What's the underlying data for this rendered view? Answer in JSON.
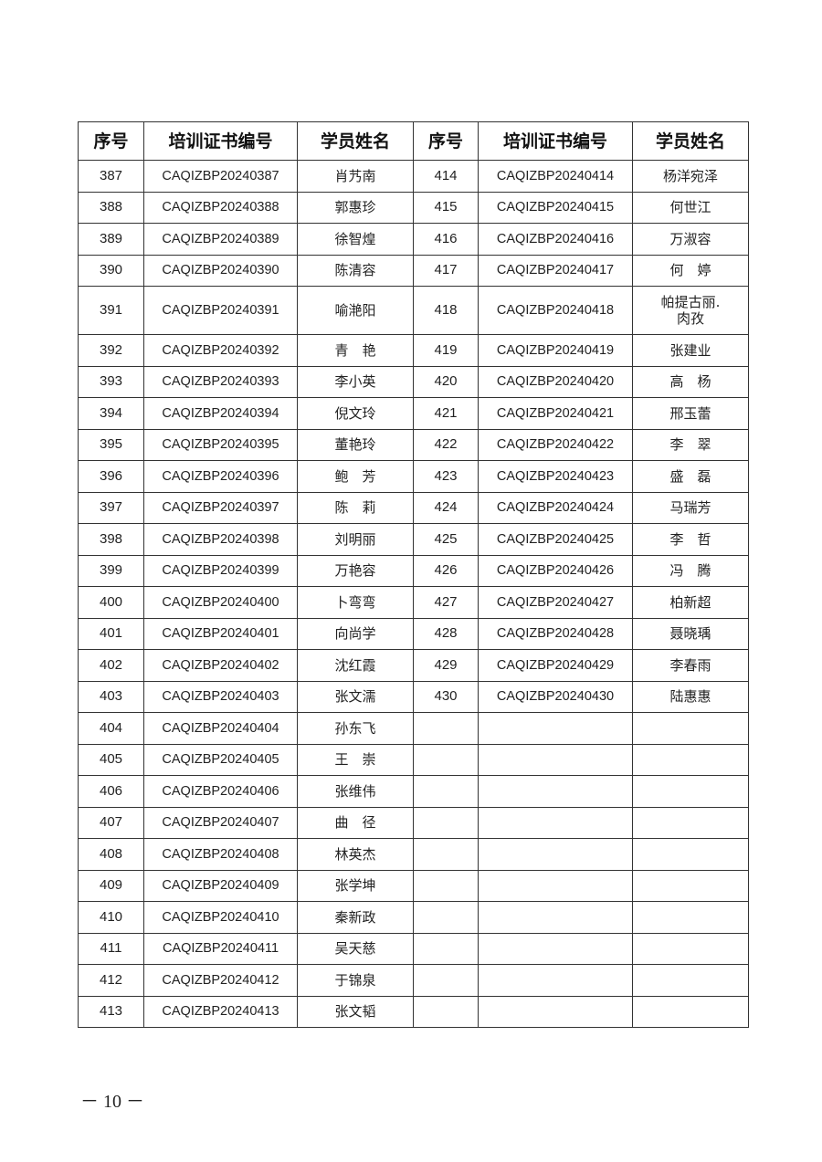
{
  "headers": [
    "序号",
    "培训证书编号",
    "学员姓名",
    "序号",
    "培训证书编号",
    "学员姓名"
  ],
  "left": [
    [
      "387",
      "CAQIZBP20240387",
      "肖艿南"
    ],
    [
      "388",
      "CAQIZBP20240388",
      "郭惠珍"
    ],
    [
      "389",
      "CAQIZBP20240389",
      "徐智煌"
    ],
    [
      "390",
      "CAQIZBP20240390",
      "陈清容"
    ],
    [
      "391",
      "CAQIZBP20240391",
      "喻滟阳"
    ],
    [
      "392",
      "CAQIZBP20240392",
      "青　艳"
    ],
    [
      "393",
      "CAQIZBP20240393",
      "李小英"
    ],
    [
      "394",
      "CAQIZBP20240394",
      "倪文玲"
    ],
    [
      "395",
      "CAQIZBP20240395",
      "董艳玲"
    ],
    [
      "396",
      "CAQIZBP20240396",
      "鲍　芳"
    ],
    [
      "397",
      "CAQIZBP20240397",
      "陈　莉"
    ],
    [
      "398",
      "CAQIZBP20240398",
      "刘明丽"
    ],
    [
      "399",
      "CAQIZBP20240399",
      "万艳容"
    ],
    [
      "400",
      "CAQIZBP20240400",
      "卜弯弯"
    ],
    [
      "401",
      "CAQIZBP20240401",
      "向尚学"
    ],
    [
      "402",
      "CAQIZBP20240402",
      "沈红霞"
    ],
    [
      "403",
      "CAQIZBP20240403",
      "张文濡"
    ],
    [
      "404",
      "CAQIZBP20240404",
      "孙东飞"
    ],
    [
      "405",
      "CAQIZBP20240405",
      "王　崇"
    ],
    [
      "406",
      "CAQIZBP20240406",
      "张维伟"
    ],
    [
      "407",
      "CAQIZBP20240407",
      "曲　径"
    ],
    [
      "408",
      "CAQIZBP20240408",
      "林英杰"
    ],
    [
      "409",
      "CAQIZBP20240409",
      "张学坤"
    ],
    [
      "410",
      "CAQIZBP20240410",
      "秦新政"
    ],
    [
      "411",
      "CAQIZBP20240411",
      "吴天慈"
    ],
    [
      "412",
      "CAQIZBP20240412",
      "于锦泉"
    ],
    [
      "413",
      "CAQIZBP20240413",
      "张文韬"
    ]
  ],
  "right": [
    [
      "414",
      "CAQIZBP20240414",
      "杨洋宛泽"
    ],
    [
      "415",
      "CAQIZBP20240415",
      "何世江"
    ],
    [
      "416",
      "CAQIZBP20240416",
      "万淑容"
    ],
    [
      "417",
      "CAQIZBP20240417",
      "何　婷"
    ],
    [
      "418",
      "CAQIZBP20240418",
      "帕提古丽.\n肉孜"
    ],
    [
      "419",
      "CAQIZBP20240419",
      "张建业"
    ],
    [
      "420",
      "CAQIZBP20240420",
      "高　杨"
    ],
    [
      "421",
      "CAQIZBP20240421",
      "邢玉蕾"
    ],
    [
      "422",
      "CAQIZBP20240422",
      "李　翠"
    ],
    [
      "423",
      "CAQIZBP20240423",
      "盛　磊"
    ],
    [
      "424",
      "CAQIZBP20240424",
      "马瑞芳"
    ],
    [
      "425",
      "CAQIZBP20240425",
      "李　哲"
    ],
    [
      "426",
      "CAQIZBP20240426",
      "冯　腾"
    ],
    [
      "427",
      "CAQIZBP20240427",
      "柏新超"
    ],
    [
      "428",
      "CAQIZBP20240428",
      "聂晓瑀"
    ],
    [
      "429",
      "CAQIZBP20240429",
      "李春雨"
    ],
    [
      "430",
      "CAQIZBP20240430",
      "陆惠惠"
    ]
  ],
  "footer": "－ 10 －"
}
